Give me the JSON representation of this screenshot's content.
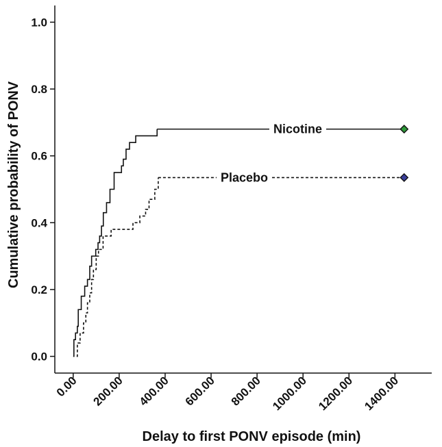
{
  "chart_data": {
    "type": "line",
    "step": true,
    "title": "",
    "xlabel": "Delay to first PONV episode (min)",
    "ylabel": "Cumulative probability of PONV",
    "xlim": [
      -80,
      1560
    ],
    "ylim": [
      -0.05,
      1.05
    ],
    "x_ticks": [
      0,
      200,
      400,
      600,
      800,
      1000,
      1200,
      1400
    ],
    "x_tick_labels": [
      "0.00",
      "200.00",
      "400.00",
      "600.00",
      "800.00",
      "1000.00",
      "1200.00",
      "1400.00"
    ],
    "y_ticks": [
      0,
      0.2,
      0.4,
      0.6,
      0.8,
      1.0
    ],
    "y_tick_labels": [
      "0.0",
      "0.2",
      "0.4",
      "0.6",
      "0.8",
      "1.0"
    ],
    "grid": false,
    "legend": "none",
    "series": [
      {
        "name": "Nicotine",
        "line_style": "solid",
        "marker_color": "#2e9a3a",
        "end_x": 1440,
        "points": [
          [
            0,
            0.0
          ],
          [
            3,
            0.05
          ],
          [
            10,
            0.07
          ],
          [
            18,
            0.09
          ],
          [
            22,
            0.14
          ],
          [
            35,
            0.18
          ],
          [
            50,
            0.21
          ],
          [
            62,
            0.23
          ],
          [
            72,
            0.27
          ],
          [
            80,
            0.3
          ],
          [
            98,
            0.32
          ],
          [
            108,
            0.34
          ],
          [
            115,
            0.36
          ],
          [
            123,
            0.39
          ],
          [
            131,
            0.43
          ],
          [
            145,
            0.46
          ],
          [
            160,
            0.5
          ],
          [
            178,
            0.55
          ],
          [
            210,
            0.57
          ],
          [
            218,
            0.59
          ],
          [
            230,
            0.62
          ],
          [
            245,
            0.64
          ],
          [
            272,
            0.66
          ],
          [
            365,
            0.68
          ]
        ]
      },
      {
        "name": "Placebo",
        "line_style": "dashed",
        "marker_color": "#3a3f9a",
        "end_x": 1440,
        "points": [
          [
            15,
            0.0
          ],
          [
            18,
            0.04
          ],
          [
            30,
            0.07
          ],
          [
            45,
            0.1
          ],
          [
            55,
            0.13
          ],
          [
            62,
            0.16
          ],
          [
            72,
            0.19
          ],
          [
            80,
            0.23
          ],
          [
            88,
            0.26
          ],
          [
            100,
            0.3
          ],
          [
            110,
            0.32
          ],
          [
            130,
            0.36
          ],
          [
            165,
            0.38
          ],
          [
            260,
            0.4
          ],
          [
            290,
            0.42
          ],
          [
            315,
            0.44
          ],
          [
            330,
            0.47
          ],
          [
            355,
            0.5
          ],
          [
            370,
            0.535
          ]
        ]
      }
    ]
  }
}
